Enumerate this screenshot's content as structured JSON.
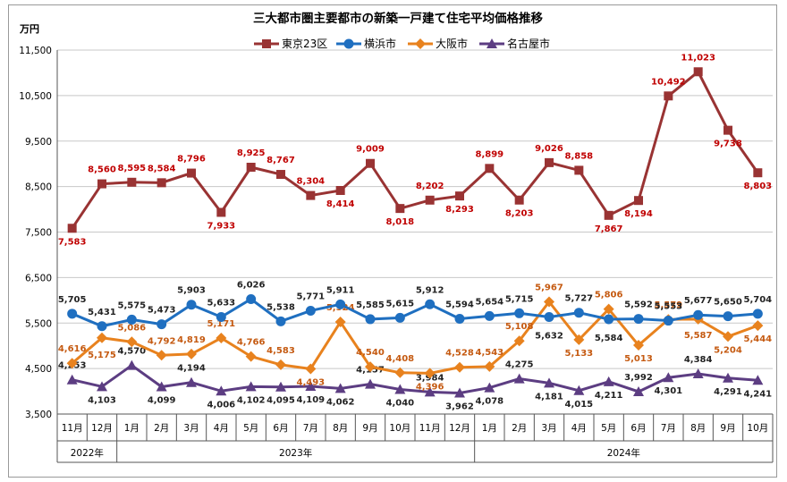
{
  "chart_data": {
    "type": "line",
    "title": "三大都市圏主要都市の新築一戸建て住宅平均価格推移",
    "ylabel": "万円",
    "ylim": [
      3500,
      11500
    ],
    "yticks": [
      "11,500",
      "10,500",
      "9,500",
      "8,500",
      "7,500",
      "6,500",
      "5,500",
      "4,500",
      "3,500"
    ],
    "grid": true,
    "legend_position": "top",
    "categories": [
      "11月",
      "12月",
      "1月",
      "2月",
      "3月",
      "4月",
      "5月",
      "6月",
      "7月",
      "8月",
      "9月",
      "10月",
      "11月",
      "12月",
      "1月",
      "2月",
      "3月",
      "4月",
      "5月",
      "6月",
      "7月",
      "8月",
      "9月",
      "10月"
    ],
    "year_groups": [
      {
        "label": "2022年",
        "span": 2
      },
      {
        "label": "2023年",
        "span": 12
      },
      {
        "label": "2024年",
        "span": 10
      }
    ],
    "series": [
      {
        "name": "東京23区",
        "color": "#993333",
        "marker": "square",
        "values": [
          7583,
          8560,
          8595,
          8584,
          8796,
          7933,
          8925,
          8767,
          8304,
          8414,
          9009,
          8018,
          8202,
          8293,
          8899,
          8203,
          9026,
          8858,
          7867,
          8194,
          10492,
          11023,
          9738,
          8803
        ],
        "labels": [
          "7,583",
          "8,560",
          "8,595",
          "8,584",
          "8,796",
          "7,933",
          "8,925",
          "8,767",
          "8,304",
          "8,414",
          "9,009",
          "8,018",
          "8,202",
          "8,293",
          "8,899",
          "8,203",
          "9,026",
          "8,858",
          "7,867",
          "8,194",
          "10,492",
          "11,023",
          "9,738",
          "8,803"
        ]
      },
      {
        "name": "横浜市",
        "color": "#1f6fc0",
        "marker": "circle",
        "values": [
          5705,
          5431,
          5575,
          5473,
          5903,
          5633,
          6026,
          5538,
          5771,
          5911,
          5585,
          5615,
          5912,
          5594,
          5654,
          5715,
          5632,
          5727,
          5584,
          5592,
          5553,
          5677,
          5650,
          5704
        ],
        "labels": [
          "5,705",
          "5,431",
          "5,575",
          "5,473",
          "5,903",
          "5,633",
          "6,026",
          "5,538",
          "5,771",
          "5,911",
          "5,585",
          "5,615",
          "5,912",
          "5,594",
          "5,654",
          "5,715",
          "5,632",
          "5,727",
          "5,584",
          "5,592",
          "5,553",
          "5,677",
          "5,650",
          "5,704"
        ]
      },
      {
        "name": "大阪市",
        "color": "#e8821e",
        "marker": "diamond",
        "values": [
          4616,
          5175,
          5086,
          4792,
          4819,
          5171,
          4766,
          4583,
          4493,
          5524,
          4540,
          4408,
          4396,
          4528,
          4543,
          5108,
          5967,
          5133,
          5806,
          5013,
          5579,
          5587,
          5204,
          5444
        ],
        "labels": [
          "4,616",
          "5,175",
          "5,086",
          "4,792",
          "4,819",
          "5,171",
          "4,766",
          "4,583",
          "4,493",
          "5,524",
          "4,540",
          "4,408",
          "4,396",
          "4,528",
          "4,543",
          "5,108",
          "5,967",
          "5,133",
          "5,806",
          "5,013",
          "5,579",
          "5,587",
          "5,204",
          "5,444"
        ]
      },
      {
        "name": "名古屋市",
        "color": "#5c3d82",
        "marker": "triangle",
        "values": [
          4253,
          4103,
          4570,
          4099,
          4194,
          4006,
          4102,
          4095,
          4109,
          4062,
          4157,
          4040,
          3984,
          3962,
          4078,
          4275,
          4181,
          4015,
          4211,
          3992,
          4301,
          4384,
          4291,
          4241
        ],
        "labels": [
          "4,253",
          "4,103",
          "4,570",
          "4,099",
          "4,194",
          "4,006",
          "4,102",
          "4,095",
          "4,109",
          "4,062",
          "4,157",
          "4,040",
          "3,984",
          "3,962",
          "4,078",
          "4,275",
          "4,181",
          "4,015",
          "4,211",
          "3,992",
          "4,301",
          "4,384",
          "4,291",
          "4,241"
        ]
      }
    ]
  }
}
